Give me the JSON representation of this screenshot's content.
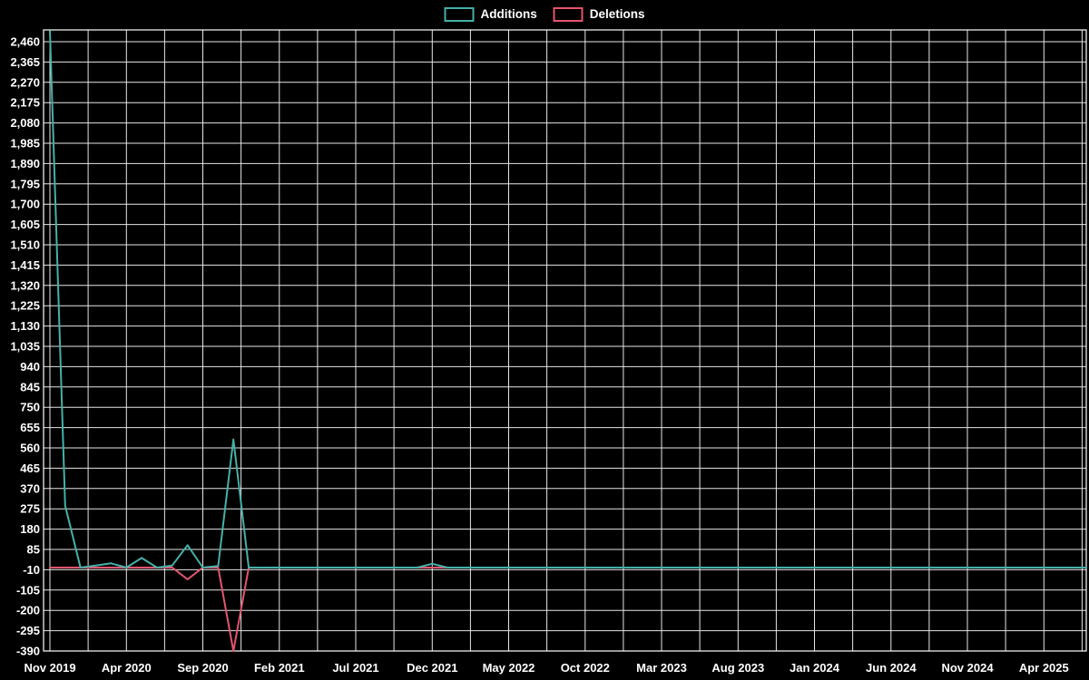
{
  "page": {
    "background": "#000000"
  },
  "legend": {
    "items": [
      {
        "label": "Additions",
        "color": "#45b1a8"
      },
      {
        "label": "Deletions",
        "color": "#e4566f"
      }
    ]
  },
  "chart_data": {
    "type": "line",
    "title": "",
    "legend_position": "top-center",
    "grid": {
      "color": "#ffffff",
      "vertical_step_months": 2.5,
      "grid_on": true
    },
    "x_axis": {
      "labels": [
        "Nov 2019",
        "Apr 2020",
        "Sep 2020",
        "Feb 2021",
        "Jul 2021",
        "Dec 2021",
        "May 2022",
        "Oct 2022",
        "Mar 2023",
        "Aug 2023",
        "Jan 2024",
        "Jun 2024",
        "Nov 2024",
        "Apr 2025"
      ],
      "label_month_index": [
        0,
        5,
        10,
        15,
        20,
        25,
        30,
        35,
        40,
        45,
        50,
        55,
        60,
        65
      ],
      "months_per_point": 1
    },
    "y_axis": {
      "tick_labels": [
        "2,460",
        "2,365",
        "2,270",
        "2,175",
        "2,080",
        "1,985",
        "1,890",
        "1,795",
        "1,700",
        "1,605",
        "1,510",
        "1,415",
        "1,320",
        "1,225",
        "1,130",
        "1,035",
        "940",
        "845",
        "750",
        "655",
        "560",
        "465",
        "370",
        "275",
        "180",
        "85",
        "-10",
        "-105",
        "-200",
        "-295",
        "-390"
      ],
      "min": -390,
      "max": 2515,
      "tick_step": 95
    },
    "series": [
      {
        "name": "Additions",
        "color": "#45b1a8",
        "values": [
          2510,
          290,
          0,
          10,
          20,
          0,
          45,
          0,
          10,
          105,
          0,
          8,
          600,
          0,
          0,
          0,
          0,
          0,
          0,
          0,
          0,
          0,
          0,
          0,
          0,
          18,
          0,
          0,
          0,
          0,
          0,
          0,
          0,
          0,
          0,
          0,
          0,
          0,
          0,
          0,
          0,
          0,
          0,
          0,
          0,
          0,
          0,
          0,
          0,
          0,
          0,
          0,
          0,
          0,
          0,
          0,
          0,
          0,
          0,
          0,
          0,
          0,
          0,
          0,
          0,
          0
        ]
      },
      {
        "name": "Deletions",
        "color": "#e4566f",
        "values": [
          0,
          0,
          0,
          0,
          0,
          0,
          0,
          0,
          0,
          -55,
          0,
          0,
          -390,
          0,
          0,
          0,
          0,
          0,
          0,
          0,
          0,
          0,
          0,
          0,
          0,
          0,
          0,
          0,
          0,
          0,
          0,
          0,
          0,
          0,
          0,
          0,
          0,
          0,
          0,
          0,
          0,
          0,
          0,
          0,
          0,
          0,
          0,
          0,
          0,
          0,
          0,
          0,
          0,
          0,
          0,
          0,
          0,
          0,
          0,
          0,
          0,
          0,
          0,
          0,
          0,
          0
        ]
      }
    ]
  }
}
